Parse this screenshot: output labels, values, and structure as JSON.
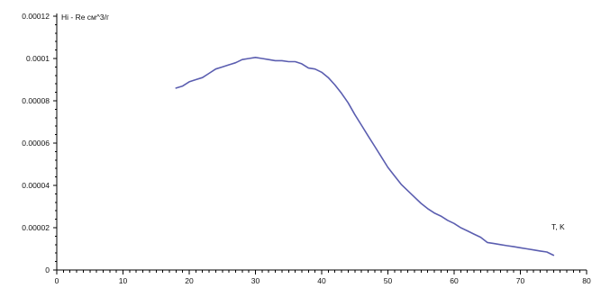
{
  "chart_data": {
    "type": "line",
    "ylabel": "Hi - Re см^3/г",
    "xlabel": "T, K",
    "xlim": [
      0,
      80
    ],
    "ylim": [
      0,
      0.00012
    ],
    "grid": false,
    "colors": {
      "line": "#5B5EB0",
      "axis": "#000000"
    },
    "x_ticks": [
      {
        "value": 0,
        "label": "0"
      },
      {
        "value": 10,
        "label": "10"
      },
      {
        "value": 20,
        "label": "20"
      },
      {
        "value": 30,
        "label": "30"
      },
      {
        "value": 40,
        "label": "40"
      },
      {
        "value": 50,
        "label": "50"
      },
      {
        "value": 60,
        "label": "60"
      },
      {
        "value": 70,
        "label": "70"
      },
      {
        "value": 80,
        "label": "80"
      }
    ],
    "y_ticks": [
      {
        "value": 0,
        "label": "0"
      },
      {
        "value": 2e-05,
        "label": "0.00002"
      },
      {
        "value": 4e-05,
        "label": "0.00004"
      },
      {
        "value": 6e-05,
        "label": "0.00006"
      },
      {
        "value": 8e-05,
        "label": "0.00008"
      },
      {
        "value": 0.0001,
        "label": "0.0001"
      },
      {
        "value": 0.00012,
        "label": "0.00012"
      }
    ],
    "series": [
      {
        "x": [
          18,
          19,
          20,
          21,
          22,
          23,
          24,
          25,
          26,
          27,
          28,
          29,
          30,
          31,
          32,
          33,
          34,
          35,
          36,
          37,
          38,
          39,
          40,
          41,
          42,
          43,
          44,
          45,
          46,
          47,
          48,
          49,
          50,
          51,
          52,
          53,
          54,
          55,
          56,
          57,
          58,
          59,
          60,
          61,
          62,
          63,
          64,
          65,
          66,
          67,
          68,
          69,
          70,
          71,
          72,
          73,
          74,
          75
        ],
        "values": [
          8.6e-05,
          8.7e-05,
          8.9e-05,
          9e-05,
          9.1e-05,
          9.3e-05,
          9.5e-05,
          9.6e-05,
          9.7e-05,
          9.8e-05,
          9.95e-05,
          0.0001,
          0.0001005,
          0.0001,
          9.95e-05,
          9.9e-05,
          9.9e-05,
          9.85e-05,
          9.85e-05,
          9.75e-05,
          9.55e-05,
          9.5e-05,
          9.35e-05,
          9.1e-05,
          8.75e-05,
          8.35e-05,
          7.9e-05,
          7.35e-05,
          6.85e-05,
          6.35e-05,
          5.85e-05,
          5.35e-05,
          4.85e-05,
          4.45e-05,
          4.05e-05,
          3.75e-05,
          3.45e-05,
          3.15e-05,
          2.9e-05,
          2.7e-05,
          2.55e-05,
          2.35e-05,
          2.2e-05,
          2e-05,
          1.85e-05,
          1.7e-05,
          1.55e-05,
          1.3e-05,
          1.25e-05,
          1.2e-05,
          1.15e-05,
          1.1e-05,
          1.05e-05,
          1e-05,
          9.5e-06,
          9e-06,
          8.5e-06,
          7e-06
        ]
      }
    ]
  }
}
